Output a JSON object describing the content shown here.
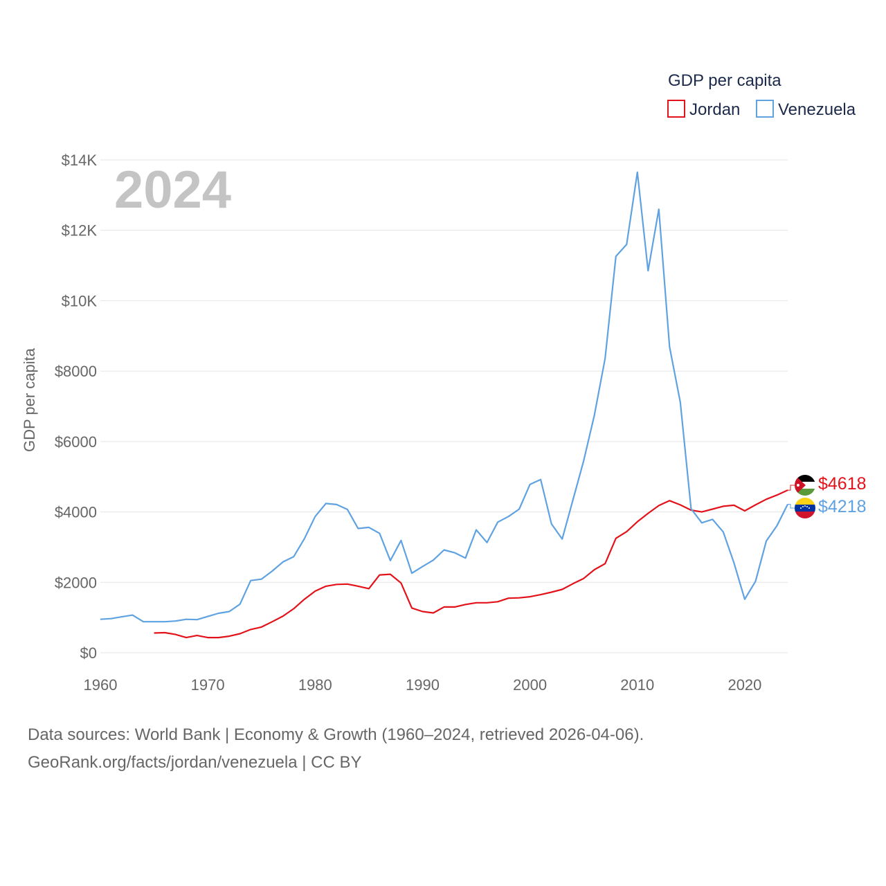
{
  "chart_data": {
    "type": "line",
    "title": "GDP per capita",
    "year_label": "2024",
    "ylabel": "GDP per capita",
    "xlabel": "",
    "xlim": [
      1960,
      2024
    ],
    "ylim": [
      0,
      14000
    ],
    "x_ticks": [
      1960,
      1970,
      1980,
      1990,
      2000,
      2010,
      2020
    ],
    "x_tick_labels": [
      "1960",
      "1970",
      "1980",
      "1990",
      "2000",
      "2010",
      "2020"
    ],
    "y_ticks": [
      0,
      2000,
      4000,
      6000,
      8000,
      10000,
      12000,
      14000
    ],
    "y_tick_labels": [
      "$0",
      "$2000",
      "$4000",
      "$6000",
      "$8000",
      "$10K",
      "$12K",
      "$14K"
    ],
    "grid": true,
    "legend": {
      "title": "GDP per capita",
      "placement": "top-right"
    },
    "series": [
      {
        "name": "Jordan",
        "color": "#e3121a",
        "end_label": "$4618",
        "flag": "jordan-flag",
        "start_year": 1965,
        "values": [
          560,
          570,
          520,
          430,
          490,
          430,
          430,
          470,
          540,
          660,
          730,
          880,
          1040,
          1250,
          1520,
          1750,
          1890,
          1940,
          1950,
          1890,
          1820,
          2210,
          2230,
          1980,
          1270,
          1170,
          1130,
          1300,
          1300,
          1370,
          1420,
          1420,
          1450,
          1550,
          1560,
          1590,
          1650,
          1720,
          1800,
          1960,
          2110,
          2360,
          2530,
          3250,
          3440,
          3720,
          3960,
          4180,
          4320,
          4200,
          4050,
          4000,
          4080,
          4160,
          4190,
          4030,
          4200,
          4360,
          4480,
          4618
        ]
      },
      {
        "name": "Venezuela",
        "color": "#5fa2e1",
        "end_label": "$4218",
        "flag": "venezuela-flag",
        "start_year": 1960,
        "values": [
          950,
          970,
          1020,
          1070,
          880,
          880,
          880,
          900,
          950,
          940,
          1030,
          1120,
          1170,
          1380,
          2050,
          2090,
          2320,
          2580,
          2730,
          3240,
          3870,
          4240,
          4210,
          4070,
          3530,
          3560,
          3390,
          2620,
          3190,
          2260,
          2450,
          2630,
          2920,
          2840,
          2690,
          3490,
          3130,
          3710,
          3870,
          4080,
          4780,
          4920,
          3660,
          3230,
          4340,
          5450,
          6750,
          8360,
          11260,
          11600,
          13650,
          10850,
          12600,
          8690,
          7120,
          4090,
          3690,
          3790,
          3430,
          2550,
          1520,
          2030,
          3170,
          3610,
          4218
        ]
      }
    ]
  },
  "source_line1": "Data sources: World Bank | Economy & Growth (1960–2024, retrieved 2026-04-06).",
  "source_line2": "GeoRank.org/facts/jordan/venezuela | CC BY"
}
